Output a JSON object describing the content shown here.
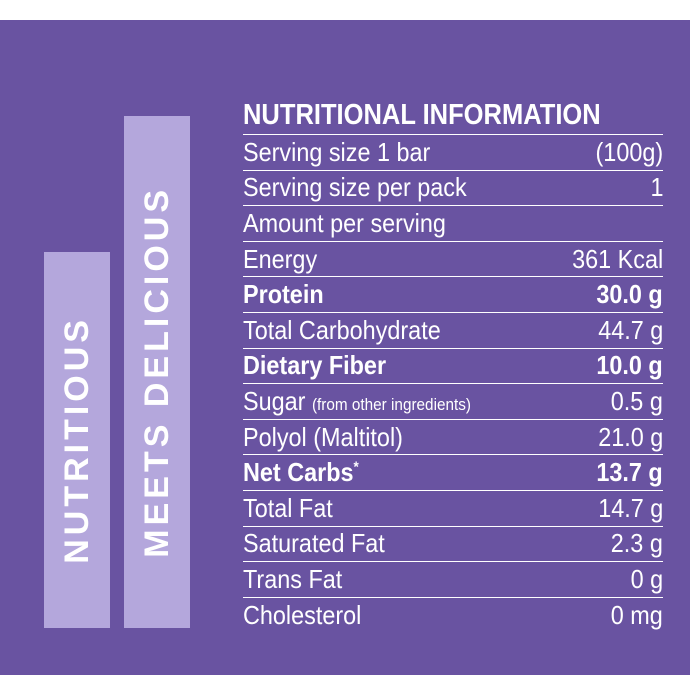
{
  "side_labels": [
    "NUTRITIOUS",
    "MEETS DELICIOUS"
  ],
  "title": "NUTRITIONAL INFORMATION",
  "rows": [
    {
      "label": "Serving size 1 bar",
      "value": "(100g)"
    },
    {
      "label": "Serving size per pack",
      "value": "1"
    },
    {
      "label": "Amount per serving"
    },
    {
      "label": "Energy",
      "value": "361 Kcal"
    },
    {
      "label": "Protein",
      "value": "30.0 g",
      "emphasis": true
    },
    {
      "label": "Total Carbohydrate",
      "value": "44.7 g"
    },
    {
      "label": "Dietary Fiber",
      "value": "10.0 g",
      "emphasis": true
    },
    {
      "label": "Sugar",
      "note": "(from other ingredients)",
      "value": "0.5 g"
    },
    {
      "label": "Polyol (Maltitol)",
      "value": "21.0 g"
    },
    {
      "label": "Net Carbs",
      "mark": "*",
      "value": "13.7 g",
      "emphasis": true
    },
    {
      "label": "Total Fat",
      "value": "14.7 g"
    },
    {
      "label": "Saturated Fat",
      "value": "2.3 g"
    },
    {
      "label": "Trans Fat",
      "value": "0 g"
    },
    {
      "label": "Cholesterol",
      "value": "0 mg"
    }
  ]
}
